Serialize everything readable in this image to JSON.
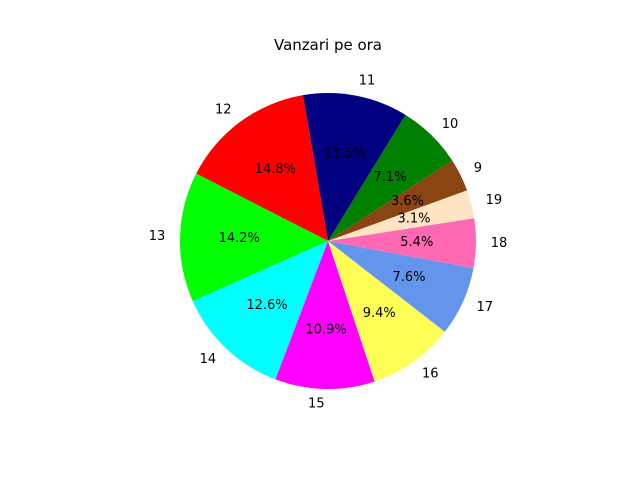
{
  "chart_data": {
    "type": "pie",
    "title": "Vanzari pe ora",
    "slices": [
      {
        "label": "9",
        "percent": 3.6,
        "percent_label": "3.6%",
        "color": "#8B4513"
      },
      {
        "label": "10",
        "percent": 7.1,
        "percent_label": "7.1%",
        "color": "#008000"
      },
      {
        "label": "11",
        "percent": 11.5,
        "percent_label": "11.5%",
        "color": "#000080"
      },
      {
        "label": "12",
        "percent": 14.8,
        "percent_label": "14.8%",
        "color": "#FF0000"
      },
      {
        "label": "13",
        "percent": 14.2,
        "percent_label": "14.2%",
        "color": "#00FF00"
      },
      {
        "label": "14",
        "percent": 12.6,
        "percent_label": "12.6%",
        "color": "#00FFFF"
      },
      {
        "label": "15",
        "percent": 10.9,
        "percent_label": "10.9%",
        "color": "#FF00FF"
      },
      {
        "label": "16",
        "percent": 9.4,
        "percent_label": "9.4%",
        "color": "#FFFF55"
      },
      {
        "label": "17",
        "percent": 7.6,
        "percent_label": "7.6%",
        "color": "#6495ED"
      },
      {
        "label": "18",
        "percent": 5.4,
        "percent_label": "5.4%",
        "color": "#FF69B4"
      },
      {
        "label": "19",
        "percent": 3.1,
        "percent_label": "3.1%",
        "color": "#FFE4C4"
      }
    ]
  }
}
